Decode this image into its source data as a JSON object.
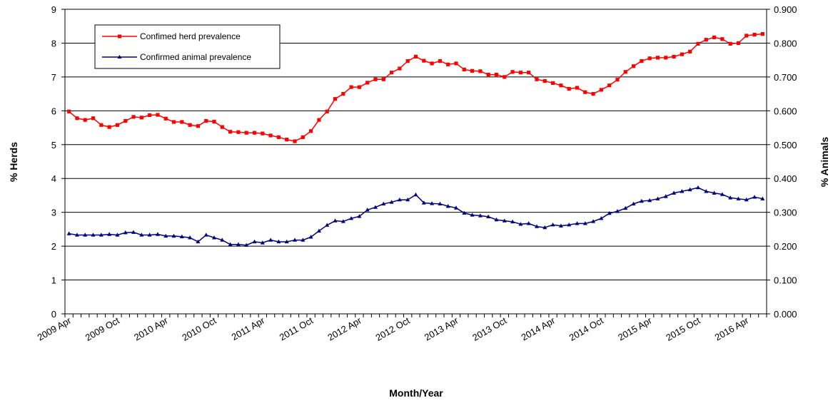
{
  "chart_data": {
    "type": "line",
    "title": "",
    "xlabel": "Month/Year",
    "ylabel_left": "% Herds",
    "ylabel_right": "% Animals",
    "ylim_left": [
      0,
      9
    ],
    "ylim_right": [
      0,
      0.9
    ],
    "yticks_left": [
      "0",
      "1",
      "2",
      "3",
      "4",
      "5",
      "6",
      "7",
      "8",
      "9"
    ],
    "yticks_right": [
      "0.000",
      "0.100",
      "0.200",
      "0.300",
      "0.400",
      "0.500",
      "0.600",
      "0.700",
      "0.800",
      "0.900"
    ],
    "grid": "horizontal",
    "legend_position": "top-left",
    "x_start": "2009 Apr",
    "x_end": "2016 Jul",
    "x_tick_labels": [
      "2009 Apr",
      "2009 Oct",
      "2010 Apr",
      "2010 Oct",
      "2011 Apr",
      "2011 Oct",
      "2012 Apr",
      "2012 Oct",
      "2013 Apr",
      "2013 Oct",
      "2014 Apr",
      "2014 Oct",
      "2015 Apr",
      "2015 Oct",
      "2016 Apr"
    ],
    "series": [
      {
        "name": "Confimed herd prevalence",
        "axis": "left",
        "color": "#ff0000",
        "marker": "square",
        "values": [
          5.98,
          5.78,
          5.73,
          5.78,
          5.58,
          5.52,
          5.58,
          5.7,
          5.82,
          5.8,
          5.87,
          5.88,
          5.77,
          5.67,
          5.67,
          5.58,
          5.55,
          5.7,
          5.68,
          5.52,
          5.38,
          5.37,
          5.35,
          5.35,
          5.33,
          5.27,
          5.22,
          5.15,
          5.1,
          5.22,
          5.4,
          5.73,
          5.98,
          6.35,
          6.5,
          6.7,
          6.7,
          6.83,
          6.93,
          6.93,
          7.13,
          7.25,
          7.47,
          7.6,
          7.48,
          7.4,
          7.47,
          7.37,
          7.4,
          7.22,
          7.18,
          7.17,
          7.07,
          7.07,
          7.0,
          7.15,
          7.13,
          7.13,
          6.93,
          6.88,
          6.82,
          6.75,
          6.65,
          6.68,
          6.55,
          6.5,
          6.62,
          6.75,
          6.92,
          7.15,
          7.32,
          7.47,
          7.55,
          7.57,
          7.57,
          7.6,
          7.67,
          7.75,
          7.98,
          8.1,
          8.17,
          8.12,
          7.98,
          8.0,
          8.22,
          8.25,
          8.27
        ]
      },
      {
        "name": "Confirmed animal prevalence",
        "axis": "right",
        "color": "#000080",
        "marker": "triangle",
        "values": [
          0.237,
          0.233,
          0.233,
          0.233,
          0.233,
          0.235,
          0.233,
          0.24,
          0.241,
          0.233,
          0.233,
          0.235,
          0.23,
          0.23,
          0.228,
          0.225,
          0.213,
          0.233,
          0.225,
          0.218,
          0.205,
          0.205,
          0.203,
          0.213,
          0.21,
          0.218,
          0.213,
          0.213,
          0.218,
          0.218,
          0.227,
          0.245,
          0.262,
          0.275,
          0.273,
          0.282,
          0.288,
          0.307,
          0.315,
          0.325,
          0.33,
          0.337,
          0.337,
          0.352,
          0.328,
          0.326,
          0.325,
          0.318,
          0.313,
          0.298,
          0.292,
          0.29,
          0.287,
          0.278,
          0.275,
          0.272,
          0.265,
          0.267,
          0.258,
          0.255,
          0.263,
          0.26,
          0.263,
          0.267,
          0.267,
          0.273,
          0.282,
          0.297,
          0.303,
          0.312,
          0.325,
          0.333,
          0.335,
          0.34,
          0.347,
          0.357,
          0.362,
          0.367,
          0.373,
          0.362,
          0.357,
          0.353,
          0.343,
          0.34,
          0.337,
          0.345,
          0.34
        ]
      }
    ]
  }
}
